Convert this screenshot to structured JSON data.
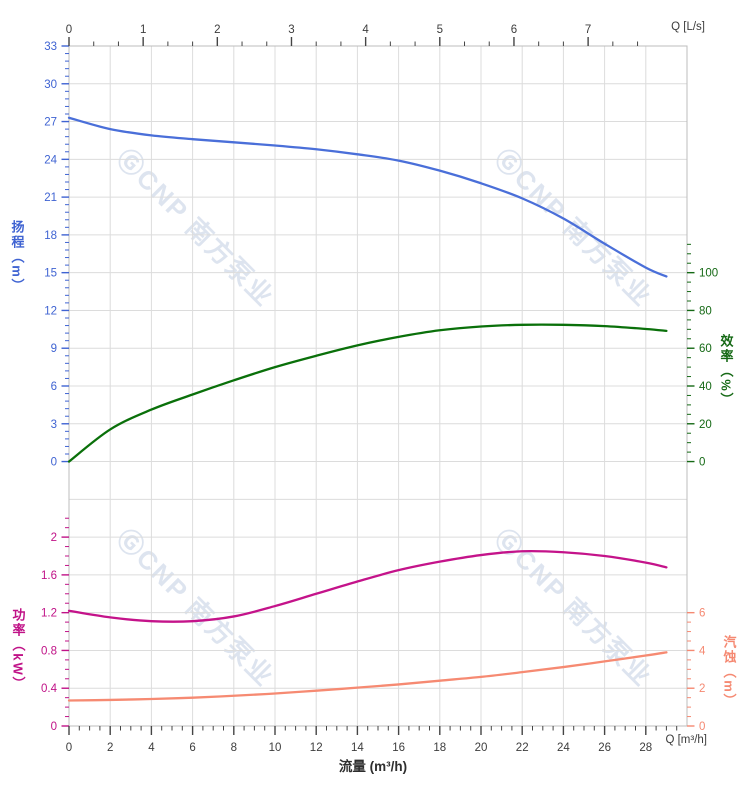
{
  "watermark": {
    "text": "ⒼCNP 南方泵业",
    "color": "#c3cfe3",
    "opacity": 0.55,
    "angle_deg": 45
  },
  "chart_data": {
    "type": "line",
    "title": "",
    "xlabel": "流量 (m³/h)",
    "grid": true,
    "legend": false,
    "x_bottom": {
      "unit": "Q [m³/h]",
      "min": 0,
      "max": 30,
      "major_step": 2,
      "minor_step": 0.5,
      "major_max": 28,
      "minor_max": 29.5,
      "tick_labels": [
        "0",
        "2",
        "4",
        "6",
        "8",
        "10",
        "12",
        "14",
        "16",
        "18",
        "20",
        "22",
        "24",
        "26",
        "28"
      ],
      "color": "#3d3d3d"
    },
    "x_top": {
      "unit": "Q [L/s]",
      "min": 0,
      "max": 8.3333,
      "major_step": 1,
      "minor_step": 0.33333,
      "major_max": 7,
      "minor_max": 7.6667,
      "tick_labels": [
        "0",
        "1",
        "2",
        "3",
        "4",
        "5",
        "6",
        "7"
      ],
      "color": "#3d3d3d"
    },
    "y_axes": [
      {
        "id": "head",
        "title": "扬程（m）",
        "side": "left",
        "color": "#3f63d2",
        "min": 0,
        "max": 33,
        "major_step": 3,
        "minor_step": 0.6,
        "minor_max": 33,
        "tick_labels": [
          "0",
          "3",
          "6",
          "9",
          "12",
          "15",
          "18",
          "21",
          "24",
          "27",
          "30",
          "33"
        ]
      },
      {
        "id": "efficiency",
        "title": "效率（%）",
        "side": "right",
        "color": "#156915",
        "min": 0,
        "max": 100,
        "major_step": 20,
        "minor_step": 5,
        "minor_max": 115,
        "tick_labels": [
          "0",
          "20",
          "40",
          "60",
          "80",
          "100"
        ]
      },
      {
        "id": "power",
        "title": "功率（kW）",
        "side": "left",
        "color": "#c01287",
        "min": 0,
        "max": 2,
        "major_step": 0.4,
        "minor_step": 0.1,
        "minor_max": 2.2,
        "tick_labels": [
          "0",
          "0.4",
          "0.8",
          "1.2",
          "1.6",
          "2"
        ]
      },
      {
        "id": "npsh",
        "title": "汽蚀（m）",
        "side": "right",
        "color": "#f58972",
        "min": 0,
        "max": 6,
        "major_step": 2,
        "minor_step": 0.5,
        "minor_max": 6,
        "tick_labels": [
          "0",
          "2",
          "4",
          "6"
        ]
      }
    ],
    "x_values": [
      0,
      2,
      4,
      6,
      8,
      10,
      12,
      14,
      16,
      18,
      20,
      22,
      24,
      26,
      28,
      29
    ],
    "series": [
      {
        "id": "head",
        "name": "扬程",
        "axis": "head",
        "color": "#4a6fd9",
        "values": [
          27.3,
          26.4,
          25.9,
          25.6,
          25.35,
          25.1,
          24.8,
          24.4,
          23.9,
          23.1,
          22.1,
          20.9,
          19.3,
          17.3,
          15.4,
          14.7
        ]
      },
      {
        "id": "efficiency",
        "name": "效率",
        "axis": "efficiency",
        "color": "#0a700a",
        "values": [
          0,
          17,
          27.5,
          35.5,
          43,
          50,
          56,
          61.5,
          66,
          69.5,
          71.5,
          72.4,
          72.4,
          71.7,
          70.2,
          69.2
        ]
      },
      {
        "id": "power",
        "name": "功率",
        "axis": "power",
        "color": "#c4138a",
        "values": [
          1.22,
          1.15,
          1.11,
          1.11,
          1.16,
          1.27,
          1.4,
          1.53,
          1.65,
          1.74,
          1.81,
          1.85,
          1.84,
          1.8,
          1.73,
          1.68
        ]
      },
      {
        "id": "npsh",
        "name": "汽蚀",
        "axis": "npsh",
        "color": "#f68a72",
        "values": [
          1.35,
          1.38,
          1.43,
          1.5,
          1.6,
          1.72,
          1.87,
          2.03,
          2.2,
          2.4,
          2.6,
          2.85,
          3.12,
          3.42,
          3.73,
          3.9
        ]
      }
    ]
  }
}
